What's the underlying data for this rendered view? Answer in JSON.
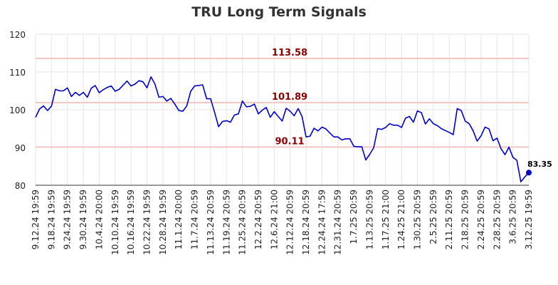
{
  "chart_data": {
    "type": "line",
    "title": "TRU Long Term Signals",
    "xlabel": "",
    "ylabel": "",
    "ylim": [
      80,
      120
    ],
    "yticks": [
      "80",
      "90",
      "100",
      "110",
      "120"
    ],
    "grid": true,
    "colors": {
      "line": "#0000cc",
      "signal_line": "#f4c7c3",
      "signal_text": "#8b0000",
      "grid": "#e6e6e6"
    },
    "x_tick_labels": [
      "9.12.24 19:59",
      "9.18.24 19:59",
      "9.24.24 19:59",
      "9.30.24 19:59",
      "10.4.24 20:00",
      "10.10.24 19:59",
      "10.16.24 19:59",
      "10.22.24 19:59",
      "10.28.24 19:59",
      "11.1.24 20:00",
      "11.7.24 20:59",
      "11.13.24 20:59",
      "11.19.24 20:59",
      "11.25.24 20:59",
      "12.2.24 20:59",
      "12.6.24 21:00",
      "12.12.24 20:59",
      "12.18.24 20:59",
      "12.24.24 17:59",
      "12.31.24 20:59",
      "1.7.25 20:59",
      "1.13.25 20:59",
      "1.17.25 21:00",
      "1.24.25 21:00",
      "1.30.25 20:59",
      "2.5.25 20:59",
      "2.11.25 20:59",
      "2.18.25 20:59",
      "2.24.25 20:59",
      "2.28.25 20:59",
      "3.6.25 20:59",
      "3.12.25 19:59"
    ],
    "signals": [
      {
        "label": "113.58",
        "value": 113.58
      },
      {
        "label": "101.89",
        "value": 101.89
      },
      {
        "label": "90.11",
        "value": 90.11
      }
    ],
    "last_point_label": "83.35",
    "series": [
      {
        "values": [
          98.0,
          100.2,
          101.0,
          99.8,
          101.0,
          105.4,
          105.0,
          105.0,
          105.8,
          103.5,
          104.6,
          103.8,
          104.6,
          103.3,
          105.7,
          106.4,
          104.5,
          105.3,
          105.9,
          106.3,
          104.9,
          105.4,
          106.5,
          107.6,
          106.3,
          106.8,
          107.7,
          107.4,
          105.8,
          108.7,
          106.8,
          103.3,
          103.5,
          102.3,
          103.0,
          101.5,
          99.8,
          99.6,
          101.0,
          104.9,
          106.3,
          106.4,
          106.6,
          102.9,
          102.9,
          99.3,
          95.5,
          96.9,
          97.1,
          96.7,
          98.6,
          98.9,
          102.3,
          100.8,
          100.9,
          101.5,
          98.9,
          99.9,
          100.6,
          98.0,
          99.5,
          98.2,
          97.0,
          100.4,
          99.6,
          98.4,
          100.3,
          98.2,
          92.8,
          93.0,
          95.1,
          94.4,
          95.4,
          94.9,
          93.8,
          92.8,
          92.8,
          92.0,
          92.3,
          92.3,
          90.3,
          90.2,
          90.2,
          86.7,
          88.2,
          89.9,
          95.0,
          94.8,
          95.3,
          96.3,
          95.9,
          95.9,
          95.3,
          97.8,
          98.2,
          96.7,
          99.7,
          99.2,
          96.2,
          97.6,
          96.3,
          95.8,
          95.0,
          94.5,
          94.0,
          93.4,
          100.3,
          99.8,
          97.0,
          96.3,
          94.4,
          91.7,
          93.1,
          95.4,
          94.9,
          91.8,
          92.5,
          89.7,
          88.1,
          90.1,
          87.4,
          86.6,
          80.9,
          82.2,
          83.35
        ]
      }
    ]
  }
}
